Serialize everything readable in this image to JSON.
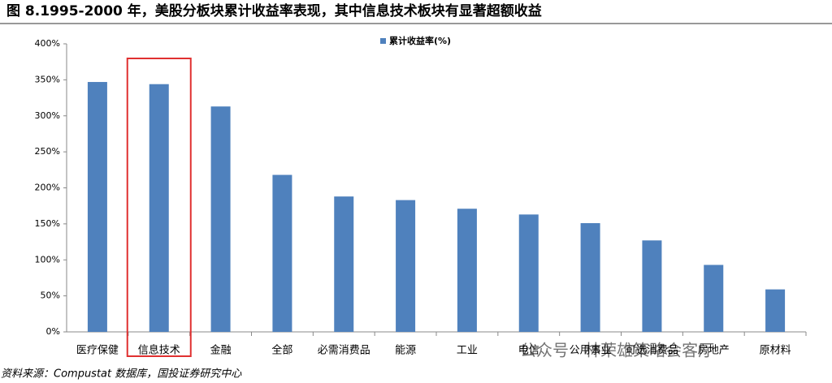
{
  "chart_data": {
    "type": "bar",
    "title": "图 8.1995-2000 年，美股分板块累计收益率表现，其中信息技术板块有显著超额收益",
    "legend_label": "累计收益率(%)",
    "categories": [
      "医疗保健",
      "信息技术",
      "金融",
      "全部",
      "必需消费品",
      "能源",
      "工业",
      "电信",
      "公用事业",
      "可选消费品",
      "房地产",
      "原材料"
    ],
    "values": [
      347,
      344,
      313,
      218,
      188,
      183,
      171,
      163,
      151,
      127,
      93,
      59
    ],
    "color": "#4f81bd",
    "highlight_category": "信息技术",
    "ylim": [
      0,
      400
    ],
    "yticks": [
      {
        "value": 0,
        "label": "0%"
      },
      {
        "value": 50,
        "label": "50%"
      },
      {
        "value": 100,
        "label": "100%"
      },
      {
        "value": 150,
        "label": "150%"
      },
      {
        "value": 200,
        "label": "200%"
      },
      {
        "value": 250,
        "label": "250%"
      },
      {
        "value": 300,
        "label": "300%"
      },
      {
        "value": 350,
        "label": "350%"
      },
      {
        "value": 400,
        "label": "400%"
      }
    ],
    "source": "资料来源：Compustat 数据库，国投证券研究中心",
    "watermark": "公众号 · 林荣雄策略会客厅"
  }
}
